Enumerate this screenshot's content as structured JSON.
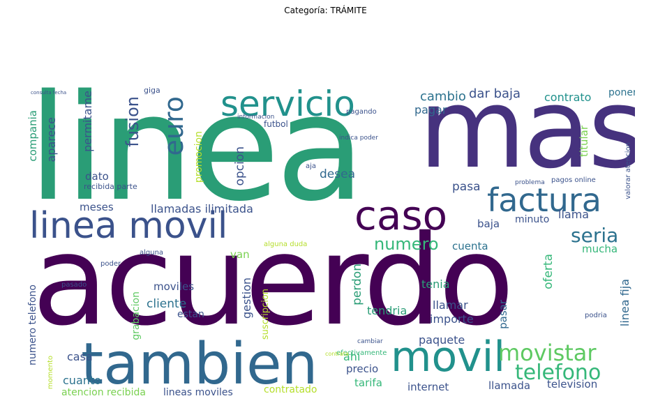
{
  "title": "Categoría: TRÁMITE",
  "words": [
    {
      "t": "linea",
      "c": "#2a9d76"
    },
    {
      "t": "mas",
      "c": "#46327e"
    },
    {
      "t": "acuerdo",
      "c": "#440154"
    },
    {
      "t": "tambien",
      "c": "#31688e"
    },
    {
      "t": "movil",
      "c": "#21918c"
    },
    {
      "t": "servicio",
      "c": "#21918c"
    },
    {
      "t": "factura",
      "c": "#31688e"
    },
    {
      "t": "caso",
      "c": "#440154"
    },
    {
      "t": "linea movil",
      "c": "#3b528b"
    },
    {
      "t": "euro",
      "c": "#31688e"
    },
    {
      "t": "movistar",
      "c": "#5ec962"
    },
    {
      "t": "telefono",
      "c": "#35b779"
    },
    {
      "t": "seria",
      "c": "#2c728e"
    },
    {
      "t": "numero",
      "c": "#35b779"
    },
    {
      "t": "fusion",
      "c": "#3b528b"
    },
    {
      "t": "cambio",
      "c": "#2c728e"
    },
    {
      "t": "dar baja",
      "c": "#3b528b"
    },
    {
      "t": "contrato",
      "c": "#21918c"
    },
    {
      "t": "poner",
      "c": "#2c728e"
    },
    {
      "t": "pagar",
      "c": "#31688e"
    },
    {
      "t": "permitame",
      "c": "#3b528b"
    },
    {
      "t": "aparece",
      "c": "#3b528b"
    },
    {
      "t": "compania",
      "c": "#2a9d76"
    },
    {
      "t": "dato",
      "c": "#3b528b"
    },
    {
      "t": "promocion",
      "c": "#b5de2b"
    },
    {
      "t": "opcion",
      "c": "#3b528b"
    },
    {
      "t": "desea",
      "c": "#31688e"
    },
    {
      "t": "pasa",
      "c": "#3b528b"
    },
    {
      "t": "titular",
      "c": "#7ad151"
    },
    {
      "t": "meses",
      "c": "#3b528b"
    },
    {
      "t": "llamadas ilimitada",
      "c": "#3b528b"
    },
    {
      "t": "llama",
      "c": "#3b528b"
    },
    {
      "t": "minuto",
      "c": "#3b528b"
    },
    {
      "t": "baja",
      "c": "#3b528b"
    },
    {
      "t": "mucha",
      "c": "#35b779"
    },
    {
      "t": "cuenta",
      "c": "#2c728e"
    },
    {
      "t": "van",
      "c": "#7ad151"
    },
    {
      "t": "perdon",
      "c": "#2a9d76"
    },
    {
      "t": "moviles",
      "c": "#3b528b"
    },
    {
      "t": "tenia",
      "c": "#2a9d76"
    },
    {
      "t": "oferta",
      "c": "#35b779"
    },
    {
      "t": "linea fija",
      "c": "#31688e"
    },
    {
      "t": "cliente",
      "c": "#2c728e"
    },
    {
      "t": "gestion",
      "c": "#3b528b"
    },
    {
      "t": "llamar",
      "c": "#3b528b"
    },
    {
      "t": "importe",
      "c": "#3b528b"
    },
    {
      "t": "tendria",
      "c": "#2a9d76"
    },
    {
      "t": "estan",
      "c": "#3b528b"
    },
    {
      "t": "paquete",
      "c": "#3b528b"
    },
    {
      "t": "pasar",
      "c": "#31688e"
    },
    {
      "t": "grabacion",
      "c": "#5ec962"
    },
    {
      "t": "casa",
      "c": "#3b528b"
    },
    {
      "t": "cuanto",
      "c": "#2c728e"
    },
    {
      "t": "ahi",
      "c": "#35b779"
    },
    {
      "t": "precio",
      "c": "#3b528b"
    },
    {
      "t": "tarifa",
      "c": "#35b779"
    },
    {
      "t": "internet",
      "c": "#3b528b"
    },
    {
      "t": "llamada",
      "c": "#3b528b"
    },
    {
      "t": "television",
      "c": "#3b528b"
    },
    {
      "t": "contratado",
      "c": "#b5de2b"
    },
    {
      "t": "atencion recibida",
      "c": "#7ad151"
    },
    {
      "t": "lineas moviles",
      "c": "#3b528b"
    },
    {
      "t": "numero telefono",
      "c": "#3b528b"
    },
    {
      "t": "futbol",
      "c": "#3b528b"
    },
    {
      "t": "giga",
      "c": "#3b528b"
    },
    {
      "t": "suscripcion",
      "c": "#b5de2b"
    },
    {
      "t": "recibida parte",
      "c": "#3b528b"
    },
    {
      "t": "aja",
      "c": "#3b528b"
    },
    {
      "t": "pagos online",
      "c": "#3b528b"
    },
    {
      "t": "valorar atencion",
      "c": "#3b528b"
    },
    {
      "t": "problema",
      "c": "#3b528b"
    },
    {
      "t": "alguna duda",
      "c": "#b5de2b"
    },
    {
      "t": "efectivamente",
      "c": "#35b779"
    },
    {
      "t": "pagando",
      "c": "#3b528b"
    },
    {
      "t": "pasado",
      "c": "#3b528b"
    },
    {
      "t": "poder",
      "c": "#3b528b"
    },
    {
      "t": "indica poder",
      "c": "#3b528b"
    },
    {
      "t": "informacion",
      "c": "#3b528b"
    },
    {
      "t": "momento",
      "c": "#b5de2b"
    },
    {
      "t": "cambiar",
      "c": "#3b528b"
    },
    {
      "t": "podria",
      "c": "#3b528b"
    },
    {
      "t": "alguna",
      "c": "#3b528b"
    },
    {
      "t": "consulta fecha",
      "c": "#3b528b"
    },
    {
      "t": "contrata",
      "c": "#b5de2b"
    }
  ]
}
